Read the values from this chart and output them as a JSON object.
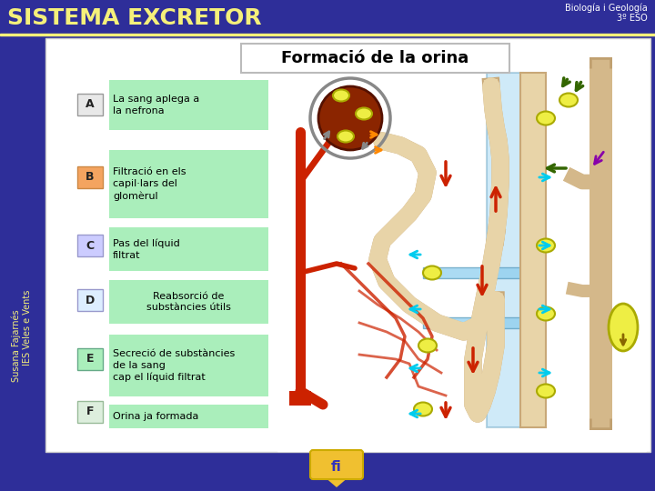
{
  "bg_color": "#2e2e99",
  "header_title": "SISTEMA EXCRETOR",
  "header_title_color": "#f5f07a",
  "header_subtitle1": "Biología i Geología",
  "header_subtitle2": "3º ESO",
  "header_subtitle_color": "#ffffff",
  "header_line_color": "#f5f07a",
  "main_title": "Formació de la orina",
  "main_title_color": "#000000",
  "steps": [
    {
      "label": "A",
      "label_bg": "#e8e8e8",
      "label_border": "#999999",
      "text": "La sang aplega a\nla nefrona",
      "text_bg": "#aaeebb",
      "text_align": "left"
    },
    {
      "label": "B",
      "label_bg": "#f4a460",
      "label_border": "#cc8844",
      "text": "Filtració en els\ncapil·lars del\nglomèrul",
      "text_bg": "#aaeebb",
      "text_align": "left"
    },
    {
      "label": "C",
      "label_bg": "#ccccff",
      "label_border": "#9999cc",
      "text": "Pas del líquid\nfiltrat",
      "text_bg": "#aaeebb",
      "text_align": "left"
    },
    {
      "label": "D",
      "label_bg": "#ddeeff",
      "label_border": "#9999cc",
      "text": "Reabsorció de\nsubstàncies útils",
      "text_bg": "#aaeebb",
      "text_align": "center"
    },
    {
      "label": "E",
      "label_bg": "#aaeebb",
      "label_border": "#66aa88",
      "text": "Secreció de substàncies\nde la sang\ncap el líquid filtrat",
      "text_bg": "#aaeebb",
      "text_align": "left"
    },
    {
      "label": "F",
      "label_bg": "#ddeedd",
      "label_border": "#99bb99",
      "text": "Orina ja formada",
      "text_bg": "#aaeebb",
      "text_align": "left"
    }
  ],
  "fi_text": "fi",
  "fi_color": "#3333bb",
  "fi_bg": "#f0c030",
  "sidebar_text1": "Susana Fajarnés",
  "sidebar_text2": "IES Veles e Vents",
  "sidebar_color": "#f5f07a"
}
